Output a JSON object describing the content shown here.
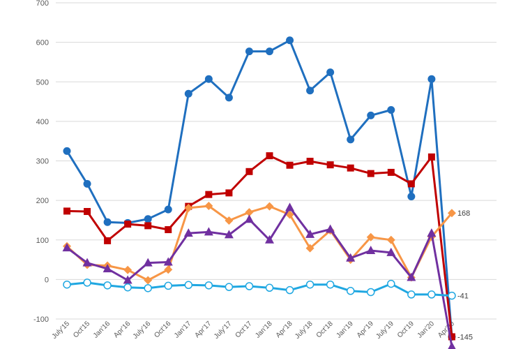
{
  "chart_data": {
    "type": "line",
    "title": "",
    "xlabel": "",
    "ylabel": "",
    "ylim": [
      -100,
      700
    ],
    "yticks": [
      -100,
      0,
      100,
      200,
      300,
      400,
      500,
      600,
      700
    ],
    "grid": true,
    "categories": [
      "July'15",
      "Oct'15",
      "Jan'16",
      "Apr'16",
      "July'16",
      "Oct'16",
      "Jan'17",
      "Apr'17",
      "July'17",
      "Oct'17",
      "Jan'18",
      "Apr'18",
      "July'18",
      "Oct'18",
      "Jan'19",
      "Apr'19",
      "July'19",
      "Oct'19",
      "Jan'20",
      "Apr'20"
    ],
    "series": [
      {
        "color": "#1f6fbf",
        "marker": "circle",
        "values": [
          325,
          242,
          145,
          143,
          153,
          177,
          470,
          507,
          460,
          577,
          577,
          605,
          478,
          524,
          354,
          415,
          429,
          210,
          507,
          -145
        ]
      },
      {
        "color": "#c00000",
        "marker": "square",
        "values": [
          173,
          172,
          98,
          140,
          136,
          126,
          185,
          215,
          219,
          273,
          313,
          289,
          299,
          290,
          282,
          268,
          271,
          242,
          310,
          -145
        ]
      },
      {
        "color": "#f79646",
        "marker": "diamond",
        "values": [
          84,
          37,
          35,
          24,
          -2,
          25,
          181,
          186,
          149,
          170,
          185,
          164,
          79,
          124,
          50,
          107,
          100,
          5,
          108,
          168
        ]
      },
      {
        "color": "#7030a0",
        "marker": "triangle",
        "values": [
          80,
          42,
          27,
          -2,
          42,
          44,
          117,
          120,
          113,
          152,
          100,
          182,
          114,
          127,
          54,
          73,
          68,
          5,
          117,
          -170
        ]
      },
      {
        "color": "#1fa7e1",
        "marker": "open-circle",
        "values": [
          -13,
          -8,
          -15,
          -20,
          -22,
          -16,
          -14,
          -15,
          -19,
          -17,
          -21,
          -27,
          -13,
          -13,
          -29,
          -32,
          -11,
          -38,
          -38,
          -41
        ]
      }
    ],
    "end_labels": [
      {
        "series": 2,
        "text": "168"
      },
      {
        "series": 4,
        "text": "-41"
      },
      {
        "series": 1,
        "text": "-145"
      }
    ]
  }
}
